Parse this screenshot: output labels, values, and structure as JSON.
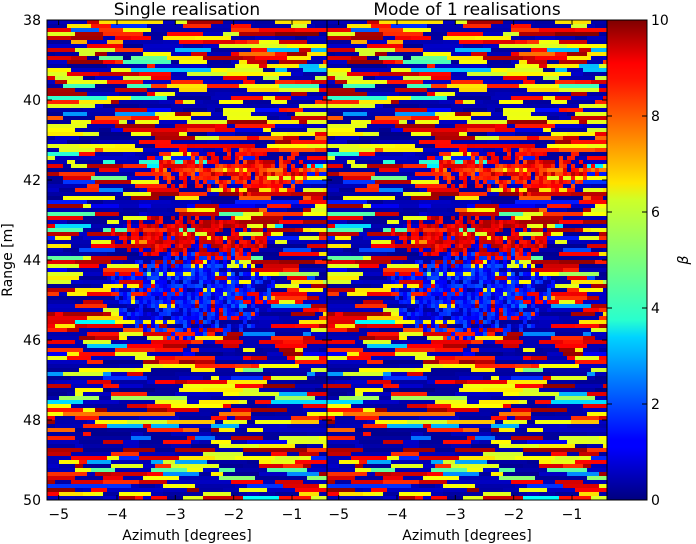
{
  "chart_data": {
    "type": "heatmap",
    "panels": [
      {
        "title": "Single realisation",
        "xlabel": "Azimuth [degrees]",
        "ylabel": "Range [m]",
        "xlim": [
          -5.2,
          -0.4
        ],
        "ylim": [
          50,
          38
        ],
        "xticks": [
          -5,
          -4,
          -3,
          -2,
          -1
        ],
        "yticks": [
          38,
          40,
          42,
          44,
          46,
          48,
          50
        ]
      },
      {
        "title": "Mode of 1 realisations",
        "xlabel": "Azimuth [degrees]",
        "ylabel": "",
        "xlim": [
          -5.2,
          -0.4
        ],
        "ylim": [
          50,
          38
        ],
        "xticks": [
          -5,
          -4,
          -3,
          -2,
          -1
        ],
        "yticks": [
          38,
          40,
          42,
          44,
          46,
          48,
          50
        ]
      }
    ],
    "colorbar": {
      "label": "β",
      "range": [
        0,
        10
      ],
      "ticks": [
        0,
        2,
        4,
        6,
        8,
        10
      ],
      "colormap": "jet"
    },
    "grid_shape": {
      "rows": 120,
      "cols": 70
    },
    "features": [
      {
        "kind": "low-value blob",
        "azimuth_center": -2.7,
        "range_center": 44.8,
        "value": 1.5
      },
      {
        "kind": "high-value arc",
        "azimuth_center": -2.7,
        "range_center": 43.4,
        "value": 9.0
      },
      {
        "kind": "high-value band",
        "azimuth_center": -2.0,
        "range_center": 41.8,
        "value": 8.5
      }
    ]
  }
}
